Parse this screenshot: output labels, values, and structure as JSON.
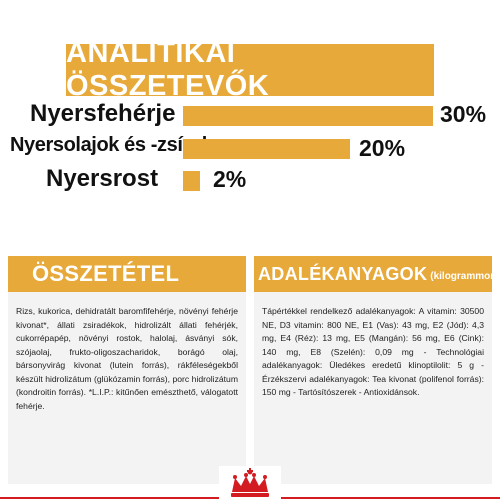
{
  "header": {
    "title": "ANALITIKAI ÖSSZETEVŐK"
  },
  "analysis": [
    {
      "label": "Nyersfehérje",
      "value": "30%",
      "fraction": 0.3
    },
    {
      "label": "Nyersolajok és -zsírok",
      "value": "20%",
      "fraction": 0.2
    },
    {
      "label": "Nyersrost",
      "value": "2%",
      "fraction": 0.02
    }
  ],
  "composition": {
    "title": "ÖSSZETÉTEL",
    "text": "Rizs, kukorica, dehidratált baromfifehérje, növényi fehérje kivonat*, állati zsiradékok, hidrolizált állati fehérjék, cukorrépapép, növényi rostok, halolaj, ásványi sók, szójaolaj, frukto-oligoszacharidok, borágó olaj, bársonyvirág kivonat (lutein forrás), rákféleségekből készült hidrolizátum (glükózamin forrás), porc hidrolizátum (kondroitin forrás). *L.I.P.: kitűnően emészthető, válogatott fehérje."
  },
  "additives": {
    "title": "ADALÉKANYAGOK",
    "subtitle": "(kilogrammonként)",
    "text": "Tápértékkel rendelkező adalékanyagok: A vitamin: 30500 NE, D3 vitamin: 800 NE, E1 (Vas): 43 mg, E2 (Jód): 4,3 mg, E4 (Réz): 13 mg, E5 (Mangán): 56 mg, E6 (Cink): 140 mg, E8 (Szelén): 0,09 mg - Technológiai adalékanyagok: Üledékes eredetű klinoptilolit: 5 g - Érzékszervi adalékanyagok: Tea kivonat (polifenol forrás): 150 mg - Tartósítószerek - Antioxidánsok."
  },
  "brand": {
    "logo": "crown-icon"
  },
  "colors": {
    "accent": "#e7a93a",
    "footer": "#d21c21",
    "panel_bg": "#f3f3f3"
  }
}
